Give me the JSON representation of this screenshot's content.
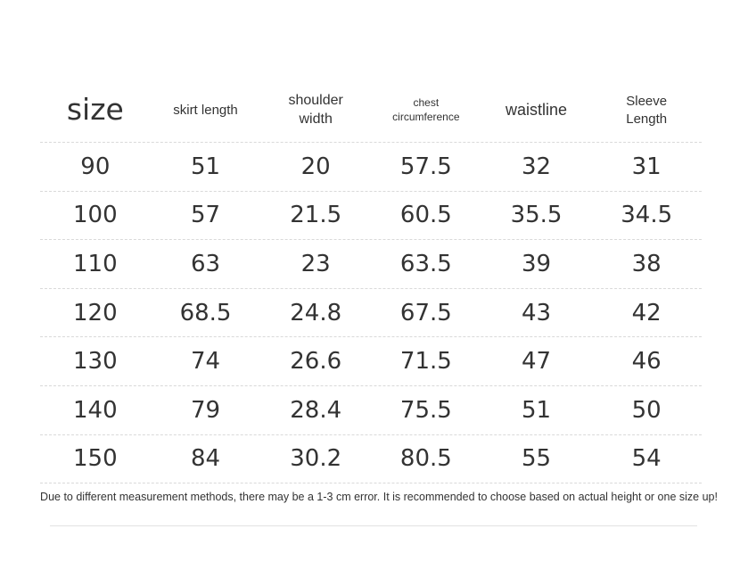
{
  "table": {
    "headers": {
      "size": "size",
      "skirt_length": "skirt length",
      "shoulder_line1": "shoulder",
      "shoulder_line2": "width",
      "chest_line1": "chest",
      "chest_line2": "circumference",
      "waistline": "waistline",
      "sleeve_line1": "Sleeve",
      "sleeve_line2": "Length"
    },
    "rows": [
      [
        "90",
        "51",
        "20",
        "57.5",
        "32",
        "31"
      ],
      [
        "100",
        "57",
        "21.5",
        "60.5",
        "35.5",
        "34.5"
      ],
      [
        "110",
        "63",
        "23",
        "63.5",
        "39",
        "38"
      ],
      [
        "120",
        "68.5",
        "24.8",
        "67.5",
        "43",
        "42"
      ],
      [
        "130",
        "74",
        "26.6",
        "71.5",
        "47",
        "46"
      ],
      [
        "140",
        "79",
        "28.4",
        "75.5",
        "51",
        "50"
      ],
      [
        "150",
        "84",
        "30.2",
        "80.5",
        "55",
        "54"
      ]
    ]
  },
  "note": "Due to different measurement methods, there may be a 1-3 cm error. It is recommended to choose based on actual height or one size up!"
}
